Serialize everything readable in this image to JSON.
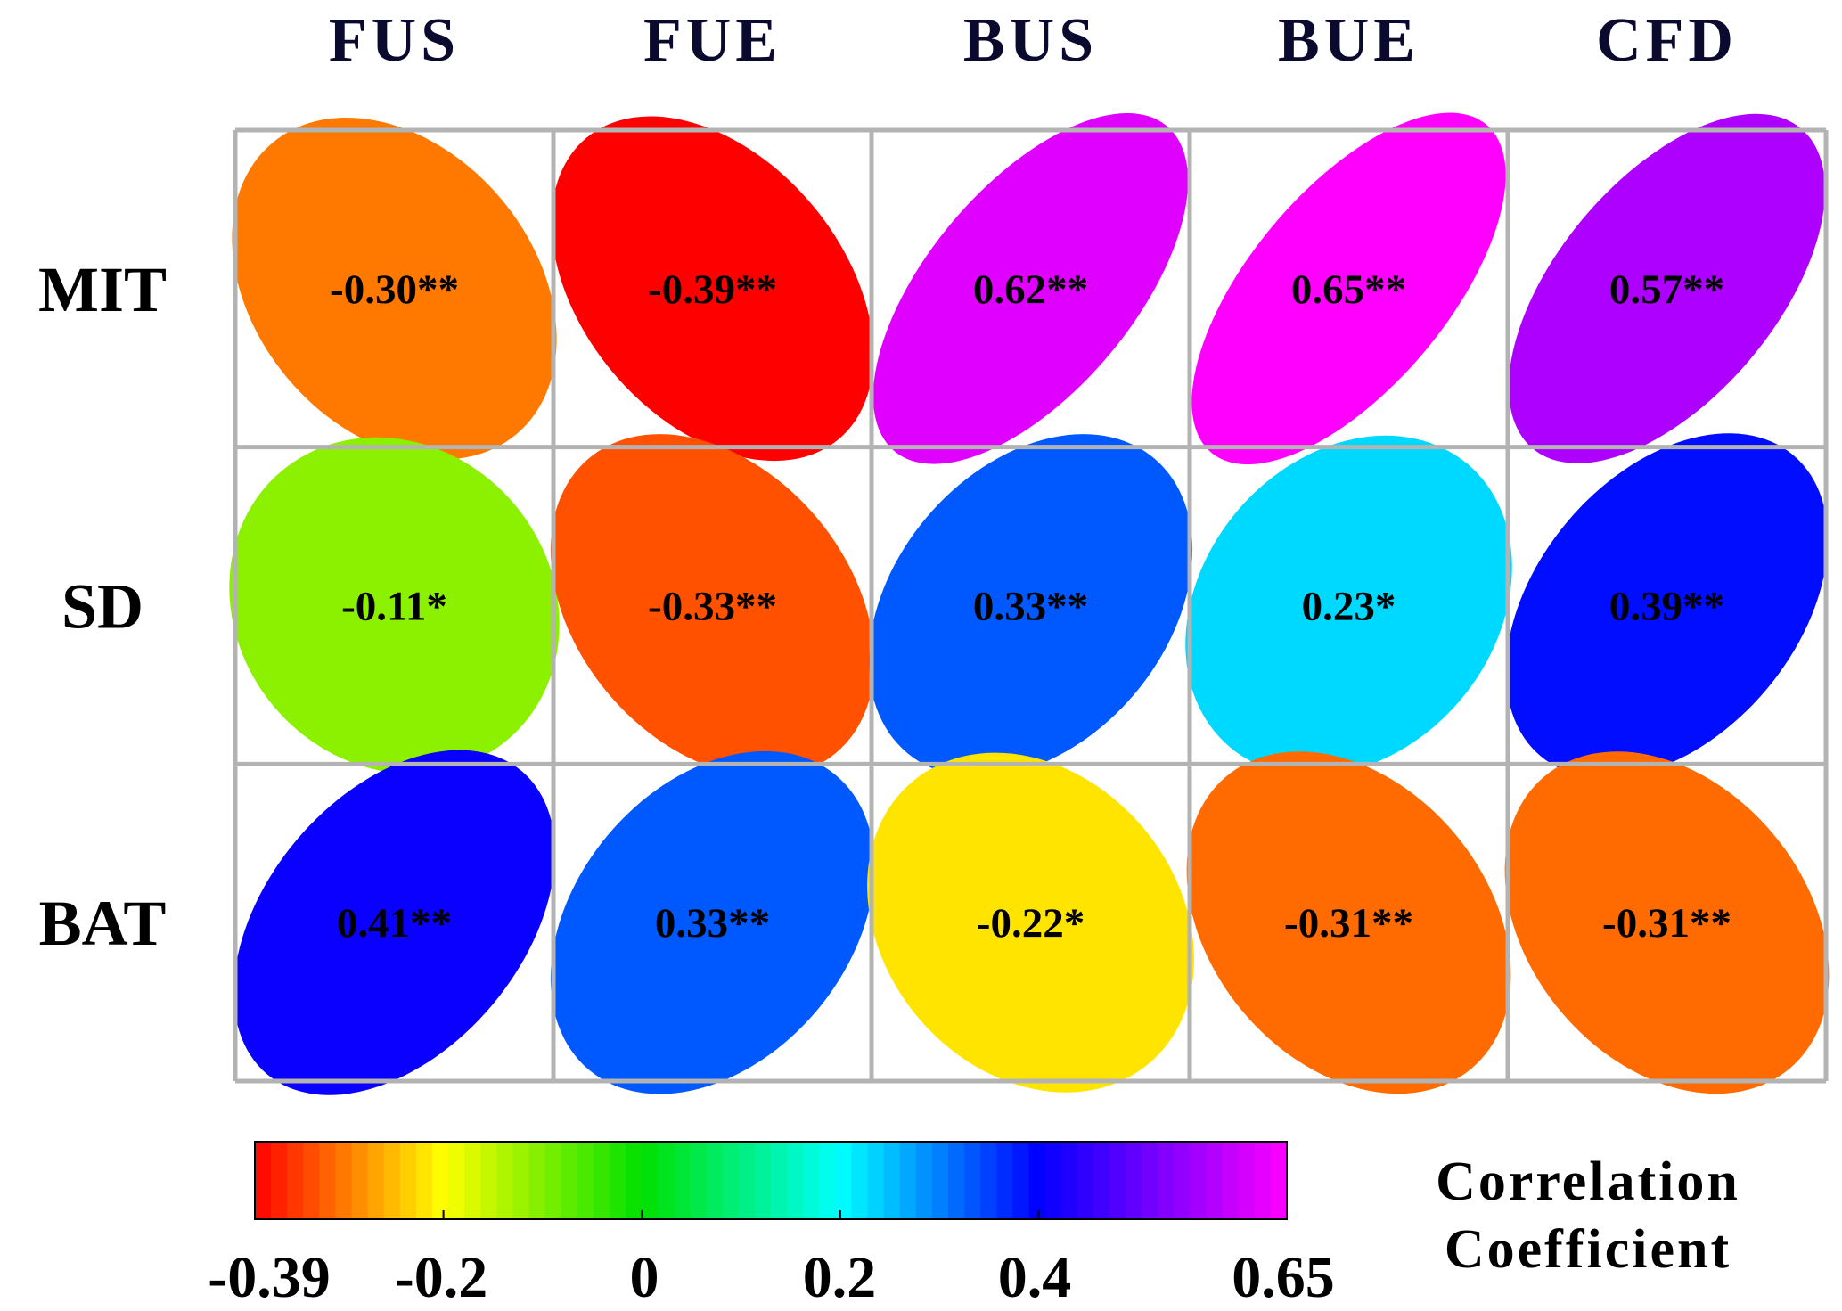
{
  "chart_data": {
    "type": "heatmap",
    "title": "",
    "columns": [
      "FUS",
      "FUE",
      "BUS",
      "BUE",
      "CFD"
    ],
    "rows": [
      "MIT",
      "SD",
      "BAT"
    ],
    "values": [
      [
        -0.3,
        -0.39,
        0.62,
        0.65,
        0.57
      ],
      [
        -0.11,
        -0.33,
        0.33,
        0.23,
        0.39
      ],
      [
        0.41,
        0.33,
        -0.22,
        -0.31,
        -0.31
      ]
    ],
    "labels": [
      [
        "-0.30**",
        "-0.39**",
        "0.62**",
        "0.65**",
        "0.57**"
      ],
      [
        "-0.11*",
        "-0.33**",
        "0.33**",
        "0.23*",
        "0.39**"
      ],
      [
        "0.41**",
        "0.33**",
        "-0.22*",
        "-0.31**",
        "-0.31**"
      ]
    ],
    "colorbar": {
      "title_lines": [
        "Correlation",
        "Coefficient"
      ],
      "min": -0.39,
      "max": 0.65,
      "tick_values": [
        -0.39,
        -0.2,
        0,
        0.2,
        0.4,
        0.65
      ],
      "tick_labels": [
        "-0.39",
        "-0.2",
        "0",
        "0.2",
        "0.4",
        "0.65"
      ],
      "colormap": [
        [
          -0.39,
          "#ff0000"
        ],
        [
          -0.2,
          "#ffff00"
        ],
        [
          0,
          "#00e000"
        ],
        [
          0.2,
          "#00ffff"
        ],
        [
          0.4,
          "#0000ff"
        ],
        [
          0.65,
          "#ff00ff"
        ]
      ]
    }
  }
}
